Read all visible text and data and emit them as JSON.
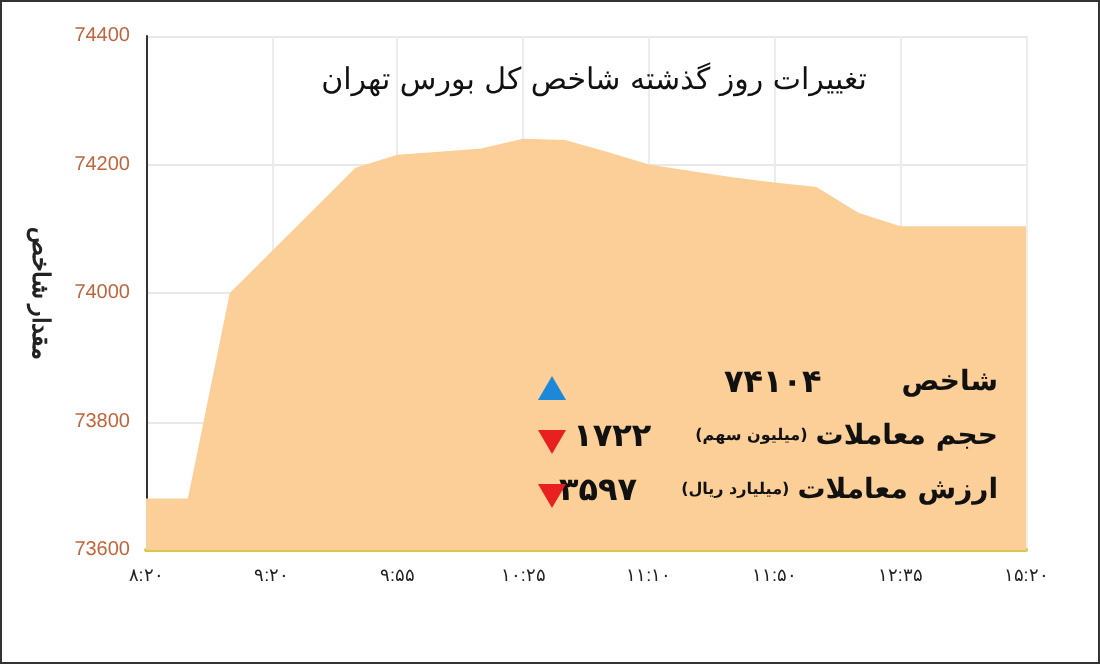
{
  "chart_data": {
    "type": "area",
    "title": "تغییرات روز گذشته شاخص کل بورس تهران",
    "ylabel": "مقدار شاخص",
    "categories": [
      "۸:۲۰",
      null,
      null,
      "۹:۲۰",
      null,
      null,
      "۹:۵۵",
      null,
      null,
      "۱۰:۲۵",
      null,
      null,
      "۱۱:۱۰",
      null,
      null,
      "۱۱:۵۰",
      null,
      null,
      "۱۲:۳۵",
      null,
      null,
      "۱۵:۲۰"
    ],
    "values": [
      73680,
      73680,
      74000,
      74065,
      74130,
      74195,
      74215,
      74220,
      74225,
      74240,
      74238,
      74220,
      74200,
      74190,
      74180,
      74172,
      74165,
      74125,
      74104,
      74104,
      74104,
      74104
    ],
    "color": "#fbcf97",
    "ylim": [
      73600,
      74400
    ],
    "yticks": [
      73600,
      73800,
      74000,
      74200,
      74400
    ],
    "grid": true,
    "annotations": [
      "شاخص",
      "۷۴۱۰۴",
      "حجم معاملات",
      "(میلیون سهم)",
      "۱۷۲۲",
      "ارزش معاملات",
      "(میلیارد ریال)",
      "۳۵۹۷"
    ]
  }
}
